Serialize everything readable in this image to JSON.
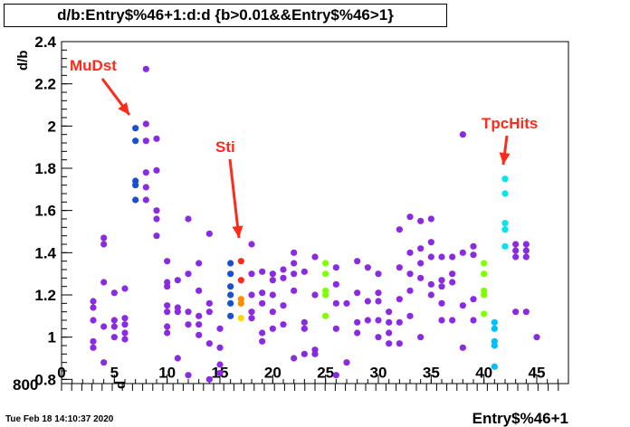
{
  "title": "d/b:Entry$%46+1:d:d {b>0.01&&Entry$%46>1}",
  "timestamp": "Tue Feb 18 14:10:37 2020",
  "annotations": [
    {
      "text": "MuDst",
      "color": "#ff2a1a"
    },
    {
      "text": "Sti",
      "color": "#ff2a1a"
    },
    {
      "text": "TpcHits",
      "color": "#ff2a1a"
    }
  ],
  "overlap_labels": {
    "left_ticks": "800",
    "d_label": "d"
  },
  "chart_data": {
    "type": "scatter",
    "title": "d/b:Entry$%46+1:d:d {b>0.01&&Entry$%46>1}",
    "xlabel": "Entry$%46+1",
    "ylabel": "d/b",
    "xlim": [
      0,
      48
    ],
    "ylim": [
      0.78,
      2.4
    ],
    "x_ticks": [
      0,
      5,
      10,
      15,
      20,
      25,
      30,
      35,
      40,
      45
    ],
    "y_ticks": [
      0.8,
      1,
      1.2,
      1.4,
      1.6,
      1.8,
      2,
      2.2,
      2.4
    ],
    "x_tick_labels": [
      "0",
      "5",
      "10",
      "15",
      "20",
      "25",
      "30",
      "35",
      "40",
      "45"
    ],
    "y_tick_labels": [
      "0.8",
      "1",
      "1.2",
      "1.4",
      "1.6",
      "1.8",
      "2",
      "2.2",
      "2.4"
    ],
    "grid": false,
    "points": [
      {
        "x": 3,
        "y": 1.17,
        "c": "#8a2be2"
      },
      {
        "x": 3,
        "y": 1.14,
        "c": "#8a2be2"
      },
      {
        "x": 3,
        "y": 1.08,
        "c": "#8a2be2"
      },
      {
        "x": 3,
        "y": 0.98,
        "c": "#8a2be2"
      },
      {
        "x": 3,
        "y": 0.95,
        "c": "#8a2be2"
      },
      {
        "x": 4,
        "y": 1.47,
        "c": "#8a2be2"
      },
      {
        "x": 4,
        "y": 1.44,
        "c": "#8a2be2"
      },
      {
        "x": 4,
        "y": 1.26,
        "c": "#8a2be2"
      },
      {
        "x": 4,
        "y": 1.05,
        "c": "#8a2be2"
      },
      {
        "x": 4,
        "y": 0.88,
        "c": "#8a2be2"
      },
      {
        "x": 5,
        "y": 1.21,
        "c": "#8a2be2"
      },
      {
        "x": 5,
        "y": 1.08,
        "c": "#8a2be2"
      },
      {
        "x": 5,
        "y": 1.05,
        "c": "#8a2be2"
      },
      {
        "x": 5,
        "y": 1.0,
        "c": "#8a2be2"
      },
      {
        "x": 6,
        "y": 1.23,
        "c": "#8a2be2"
      },
      {
        "x": 6,
        "y": 1.09,
        "c": "#8a2be2"
      },
      {
        "x": 6,
        "y": 1.06,
        "c": "#8a2be2"
      },
      {
        "x": 6,
        "y": 1.02,
        "c": "#8a2be2"
      },
      {
        "x": 6,
        "y": 0.99,
        "c": "#8a2be2"
      },
      {
        "x": 7,
        "y": 1.99,
        "c": "#1a4fd0"
      },
      {
        "x": 7,
        "y": 1.93,
        "c": "#1a4fd0"
      },
      {
        "x": 7,
        "y": 1.74,
        "c": "#1a4fd0"
      },
      {
        "x": 7,
        "y": 1.72,
        "c": "#1a4fd0"
      },
      {
        "x": 7,
        "y": 1.65,
        "c": "#1a4fd0"
      },
      {
        "x": 8,
        "y": 2.27,
        "c": "#8a2be2"
      },
      {
        "x": 8,
        "y": 2.01,
        "c": "#8a2be2"
      },
      {
        "x": 8,
        "y": 1.93,
        "c": "#8a2be2"
      },
      {
        "x": 8,
        "y": 1.78,
        "c": "#8a2be2"
      },
      {
        "x": 8,
        "y": 1.71,
        "c": "#8a2be2"
      },
      {
        "x": 8,
        "y": 1.65,
        "c": "#8a2be2"
      },
      {
        "x": 9,
        "y": 1.94,
        "c": "#8a2be2"
      },
      {
        "x": 9,
        "y": 1.79,
        "c": "#8a2be2"
      },
      {
        "x": 9,
        "y": 1.6,
        "c": "#8a2be2"
      },
      {
        "x": 9,
        "y": 1.56,
        "c": "#8a2be2"
      },
      {
        "x": 9,
        "y": 1.48,
        "c": "#8a2be2"
      },
      {
        "x": 10,
        "y": 1.36,
        "c": "#8a2be2"
      },
      {
        "x": 10,
        "y": 1.26,
        "c": "#8a2be2"
      },
      {
        "x": 10,
        "y": 1.24,
        "c": "#8a2be2"
      },
      {
        "x": 10,
        "y": 1.15,
        "c": "#8a2be2"
      },
      {
        "x": 10,
        "y": 1.12,
        "c": "#8a2be2"
      },
      {
        "x": 10,
        "y": 1.05,
        "c": "#8a2be2"
      },
      {
        "x": 10,
        "y": 1.02,
        "c": "#8a2be2"
      },
      {
        "x": 11,
        "y": 1.27,
        "c": "#8a2be2"
      },
      {
        "x": 11,
        "y": 1.14,
        "c": "#8a2be2"
      },
      {
        "x": 11,
        "y": 1.12,
        "c": "#8a2be2"
      },
      {
        "x": 11,
        "y": 0.9,
        "c": "#8a2be2"
      },
      {
        "x": 12,
        "y": 1.56,
        "c": "#8a2be2"
      },
      {
        "x": 12,
        "y": 1.3,
        "c": "#8a2be2"
      },
      {
        "x": 12,
        "y": 1.12,
        "c": "#8a2be2"
      },
      {
        "x": 12,
        "y": 1.06,
        "c": "#8a2be2"
      },
      {
        "x": 12,
        "y": 0.82,
        "c": "#8a2be2"
      },
      {
        "x": 13,
        "y": 1.35,
        "c": "#8a2be2"
      },
      {
        "x": 13,
        "y": 1.22,
        "c": "#8a2be2"
      },
      {
        "x": 13,
        "y": 1.1,
        "c": "#8a2be2"
      },
      {
        "x": 13,
        "y": 1.06,
        "c": "#8a2be2"
      },
      {
        "x": 13,
        "y": 1.01,
        "c": "#8a2be2"
      },
      {
        "x": 14,
        "y": 1.49,
        "c": "#8a2be2"
      },
      {
        "x": 14,
        "y": 1.16,
        "c": "#8a2be2"
      },
      {
        "x": 14,
        "y": 1.12,
        "c": "#8a2be2"
      },
      {
        "x": 14,
        "y": 0.97,
        "c": "#8a2be2"
      },
      {
        "x": 14,
        "y": 0.8,
        "c": "#8a2be2"
      },
      {
        "x": 15,
        "y": 1.04,
        "c": "#8a2be2"
      },
      {
        "x": 15,
        "y": 0.95,
        "c": "#8a2be2"
      },
      {
        "x": 15,
        "y": 0.87,
        "c": "#8a2be2"
      },
      {
        "x": 15,
        "y": 0.83,
        "c": "#8a2be2"
      },
      {
        "x": 16,
        "y": 1.35,
        "c": "#1a4fd0"
      },
      {
        "x": 16,
        "y": 1.3,
        "c": "#1a4fd0"
      },
      {
        "x": 16,
        "y": 1.24,
        "c": "#1a4fd0"
      },
      {
        "x": 16,
        "y": 1.2,
        "c": "#1a4fd0"
      },
      {
        "x": 16,
        "y": 1.16,
        "c": "#1a4fd0"
      },
      {
        "x": 16,
        "y": 1.1,
        "c": "#1a4fd0"
      },
      {
        "x": 17,
        "y": 1.36,
        "c": "#ff2a1a"
      },
      {
        "x": 17,
        "y": 1.27,
        "c": "#ff2a1a"
      },
      {
        "x": 17,
        "y": 1.18,
        "c": "#ff8c00"
      },
      {
        "x": 17,
        "y": 1.16,
        "c": "#ff8c00"
      },
      {
        "x": 17,
        "y": 1.09,
        "c": "#ffd700"
      },
      {
        "x": 18,
        "y": 1.44,
        "c": "#8a2be2"
      },
      {
        "x": 18,
        "y": 1.3,
        "c": "#8a2be2"
      },
      {
        "x": 18,
        "y": 1.2,
        "c": "#8a2be2"
      },
      {
        "x": 18,
        "y": 1.12,
        "c": "#8a2be2"
      },
      {
        "x": 18,
        "y": 1.09,
        "c": "#8a2be2"
      },
      {
        "x": 19,
        "y": 1.31,
        "c": "#8a2be2"
      },
      {
        "x": 19,
        "y": 1.21,
        "c": "#8a2be2"
      },
      {
        "x": 19,
        "y": 1.16,
        "c": "#8a2be2"
      },
      {
        "x": 19,
        "y": 1.02,
        "c": "#8a2be2"
      },
      {
        "x": 19,
        "y": 0.98,
        "c": "#8a2be2"
      },
      {
        "x": 20,
        "y": 1.3,
        "c": "#8a2be2"
      },
      {
        "x": 20,
        "y": 1.27,
        "c": "#8a2be2"
      },
      {
        "x": 20,
        "y": 1.2,
        "c": "#8a2be2"
      },
      {
        "x": 20,
        "y": 1.12,
        "c": "#8a2be2"
      },
      {
        "x": 20,
        "y": 1.04,
        "c": "#8a2be2"
      },
      {
        "x": 21,
        "y": 1.32,
        "c": "#8a2be2"
      },
      {
        "x": 21,
        "y": 1.28,
        "c": "#8a2be2"
      },
      {
        "x": 21,
        "y": 1.15,
        "c": "#8a2be2"
      },
      {
        "x": 21,
        "y": 1.06,
        "c": "#8a2be2"
      },
      {
        "x": 22,
        "y": 1.4,
        "c": "#8a2be2"
      },
      {
        "x": 22,
        "y": 1.35,
        "c": "#8a2be2"
      },
      {
        "x": 22,
        "y": 1.3,
        "c": "#8a2be2"
      },
      {
        "x": 22,
        "y": 1.22,
        "c": "#8a2be2"
      },
      {
        "x": 22,
        "y": 0.9,
        "c": "#8a2be2"
      },
      {
        "x": 23,
        "y": 1.31,
        "c": "#8a2be2"
      },
      {
        "x": 23,
        "y": 1.07,
        "c": "#8a2be2"
      },
      {
        "x": 23,
        "y": 1.04,
        "c": "#8a2be2"
      },
      {
        "x": 23,
        "y": 0.92,
        "c": "#8a2be2"
      },
      {
        "x": 24,
        "y": 1.38,
        "c": "#8a2be2"
      },
      {
        "x": 24,
        "y": 1.2,
        "c": "#8a2be2"
      },
      {
        "x": 24,
        "y": 0.94,
        "c": "#8a2be2"
      },
      {
        "x": 24,
        "y": 0.92,
        "c": "#8a2be2"
      },
      {
        "x": 25,
        "y": 1.35,
        "c": "#7fff00"
      },
      {
        "x": 25,
        "y": 1.3,
        "c": "#7fff00"
      },
      {
        "x": 25,
        "y": 1.22,
        "c": "#7fff00"
      },
      {
        "x": 25,
        "y": 1.2,
        "c": "#7fff00"
      },
      {
        "x": 25,
        "y": 1.1,
        "c": "#7fff00"
      },
      {
        "x": 26,
        "y": 1.33,
        "c": "#8a2be2"
      },
      {
        "x": 26,
        "y": 1.25,
        "c": "#8a2be2"
      },
      {
        "x": 26,
        "y": 1.16,
        "c": "#8a2be2"
      },
      {
        "x": 26,
        "y": 1.04,
        "c": "#8a2be2"
      },
      {
        "x": 26,
        "y": 0.82,
        "c": "#8a2be2"
      },
      {
        "x": 27,
        "y": 1.16,
        "c": "#8a2be2"
      },
      {
        "x": 27,
        "y": 0.88,
        "c": "#8a2be2"
      },
      {
        "x": 28,
        "y": 1.36,
        "c": "#8a2be2"
      },
      {
        "x": 28,
        "y": 1.21,
        "c": "#8a2be2"
      },
      {
        "x": 28,
        "y": 1.07,
        "c": "#8a2be2"
      },
      {
        "x": 28,
        "y": 1.02,
        "c": "#8a2be2"
      },
      {
        "x": 29,
        "y": 1.33,
        "c": "#8a2be2"
      },
      {
        "x": 29,
        "y": 1.17,
        "c": "#8a2be2"
      },
      {
        "x": 29,
        "y": 1.08,
        "c": "#8a2be2"
      },
      {
        "x": 30,
        "y": 1.3,
        "c": "#8a2be2"
      },
      {
        "x": 30,
        "y": 1.21,
        "c": "#8a2be2"
      },
      {
        "x": 30,
        "y": 1.17,
        "c": "#8a2be2"
      },
      {
        "x": 30,
        "y": 1.08,
        "c": "#8a2be2"
      },
      {
        "x": 30,
        "y": 1.0,
        "c": "#8a2be2"
      },
      {
        "x": 31,
        "y": 1.12,
        "c": "#8a2be2"
      },
      {
        "x": 31,
        "y": 1.07,
        "c": "#8a2be2"
      },
      {
        "x": 31,
        "y": 1.02,
        "c": "#8a2be2"
      },
      {
        "x": 31,
        "y": 0.97,
        "c": "#8a2be2"
      },
      {
        "x": 32,
        "y": 1.51,
        "c": "#8a2be2"
      },
      {
        "x": 32,
        "y": 1.33,
        "c": "#8a2be2"
      },
      {
        "x": 32,
        "y": 1.18,
        "c": "#8a2be2"
      },
      {
        "x": 32,
        "y": 1.07,
        "c": "#8a2be2"
      },
      {
        "x": 32,
        "y": 0.97,
        "c": "#8a2be2"
      },
      {
        "x": 33,
        "y": 1.57,
        "c": "#8a2be2"
      },
      {
        "x": 33,
        "y": 1.4,
        "c": "#8a2be2"
      },
      {
        "x": 33,
        "y": 1.3,
        "c": "#8a2be2"
      },
      {
        "x": 33,
        "y": 1.22,
        "c": "#8a2be2"
      },
      {
        "x": 33,
        "y": 1.1,
        "c": "#8a2be2"
      },
      {
        "x": 34,
        "y": 1.55,
        "c": "#8a2be2"
      },
      {
        "x": 34,
        "y": 1.42,
        "c": "#8a2be2"
      },
      {
        "x": 34,
        "y": 1.35,
        "c": "#8a2be2"
      },
      {
        "x": 34,
        "y": 1.28,
        "c": "#8a2be2"
      },
      {
        "x": 34,
        "y": 1.0,
        "c": "#8a2be2"
      },
      {
        "x": 35,
        "y": 1.56,
        "c": "#8a2be2"
      },
      {
        "x": 35,
        "y": 1.45,
        "c": "#8a2be2"
      },
      {
        "x": 35,
        "y": 1.38,
        "c": "#8a2be2"
      },
      {
        "x": 35,
        "y": 1.25,
        "c": "#8a2be2"
      },
      {
        "x": 35,
        "y": 1.2,
        "c": "#8a2be2"
      },
      {
        "x": 36,
        "y": 1.38,
        "c": "#8a2be2"
      },
      {
        "x": 36,
        "y": 1.27,
        "c": "#8a2be2"
      },
      {
        "x": 36,
        "y": 1.24,
        "c": "#8a2be2"
      },
      {
        "x": 36,
        "y": 1.16,
        "c": "#8a2be2"
      },
      {
        "x": 36,
        "y": 1.08,
        "c": "#8a2be2"
      },
      {
        "x": 37,
        "y": 1.38,
        "c": "#8a2be2"
      },
      {
        "x": 37,
        "y": 1.3,
        "c": "#8a2be2"
      },
      {
        "x": 37,
        "y": 1.26,
        "c": "#8a2be2"
      },
      {
        "x": 37,
        "y": 1.08,
        "c": "#8a2be2"
      },
      {
        "x": 38,
        "y": 1.96,
        "c": "#8a2be2"
      },
      {
        "x": 38,
        "y": 1.4,
        "c": "#8a2be2"
      },
      {
        "x": 38,
        "y": 1.15,
        "c": "#8a2be2"
      },
      {
        "x": 38,
        "y": 0.95,
        "c": "#8a2be2"
      },
      {
        "x": 39,
        "y": 1.43,
        "c": "#8a2be2"
      },
      {
        "x": 39,
        "y": 1.39,
        "c": "#8a2be2"
      },
      {
        "x": 39,
        "y": 1.18,
        "c": "#8a2be2"
      },
      {
        "x": 39,
        "y": 1.08,
        "c": "#8a2be2"
      },
      {
        "x": 40,
        "y": 1.35,
        "c": "#7fff00"
      },
      {
        "x": 40,
        "y": 1.3,
        "c": "#7fff00"
      },
      {
        "x": 40,
        "y": 1.22,
        "c": "#7fff00"
      },
      {
        "x": 40,
        "y": 1.2,
        "c": "#7fff00"
      },
      {
        "x": 40,
        "y": 1.11,
        "c": "#7fff00"
      },
      {
        "x": 41,
        "y": 1.07,
        "c": "#00bfff"
      },
      {
        "x": 41,
        "y": 1.04,
        "c": "#00bfff"
      },
      {
        "x": 41,
        "y": 0.98,
        "c": "#00bfff"
      },
      {
        "x": 41,
        "y": 0.96,
        "c": "#00bfff"
      },
      {
        "x": 41,
        "y": 0.86,
        "c": "#00bfff"
      },
      {
        "x": 42,
        "y": 1.75,
        "c": "#00e5ee"
      },
      {
        "x": 42,
        "y": 1.68,
        "c": "#00e5ee"
      },
      {
        "x": 42,
        "y": 1.54,
        "c": "#00e5ee"
      },
      {
        "x": 42,
        "y": 1.51,
        "c": "#00e5ee"
      },
      {
        "x": 42,
        "y": 1.43,
        "c": "#00e5ee"
      },
      {
        "x": 43,
        "y": 1.44,
        "c": "#8a2be2"
      },
      {
        "x": 43,
        "y": 1.41,
        "c": "#8a2be2"
      },
      {
        "x": 43,
        "y": 1.38,
        "c": "#8a2be2"
      },
      {
        "x": 43,
        "y": 1.12,
        "c": "#8a2be2"
      },
      {
        "x": 44,
        "y": 1.44,
        "c": "#8a2be2"
      },
      {
        "x": 44,
        "y": 1.41,
        "c": "#8a2be2"
      },
      {
        "x": 44,
        "y": 1.38,
        "c": "#8a2be2"
      },
      {
        "x": 44,
        "y": 1.12,
        "c": "#8a2be2"
      },
      {
        "x": 45,
        "y": 1.0,
        "c": "#8a2be2"
      }
    ]
  }
}
